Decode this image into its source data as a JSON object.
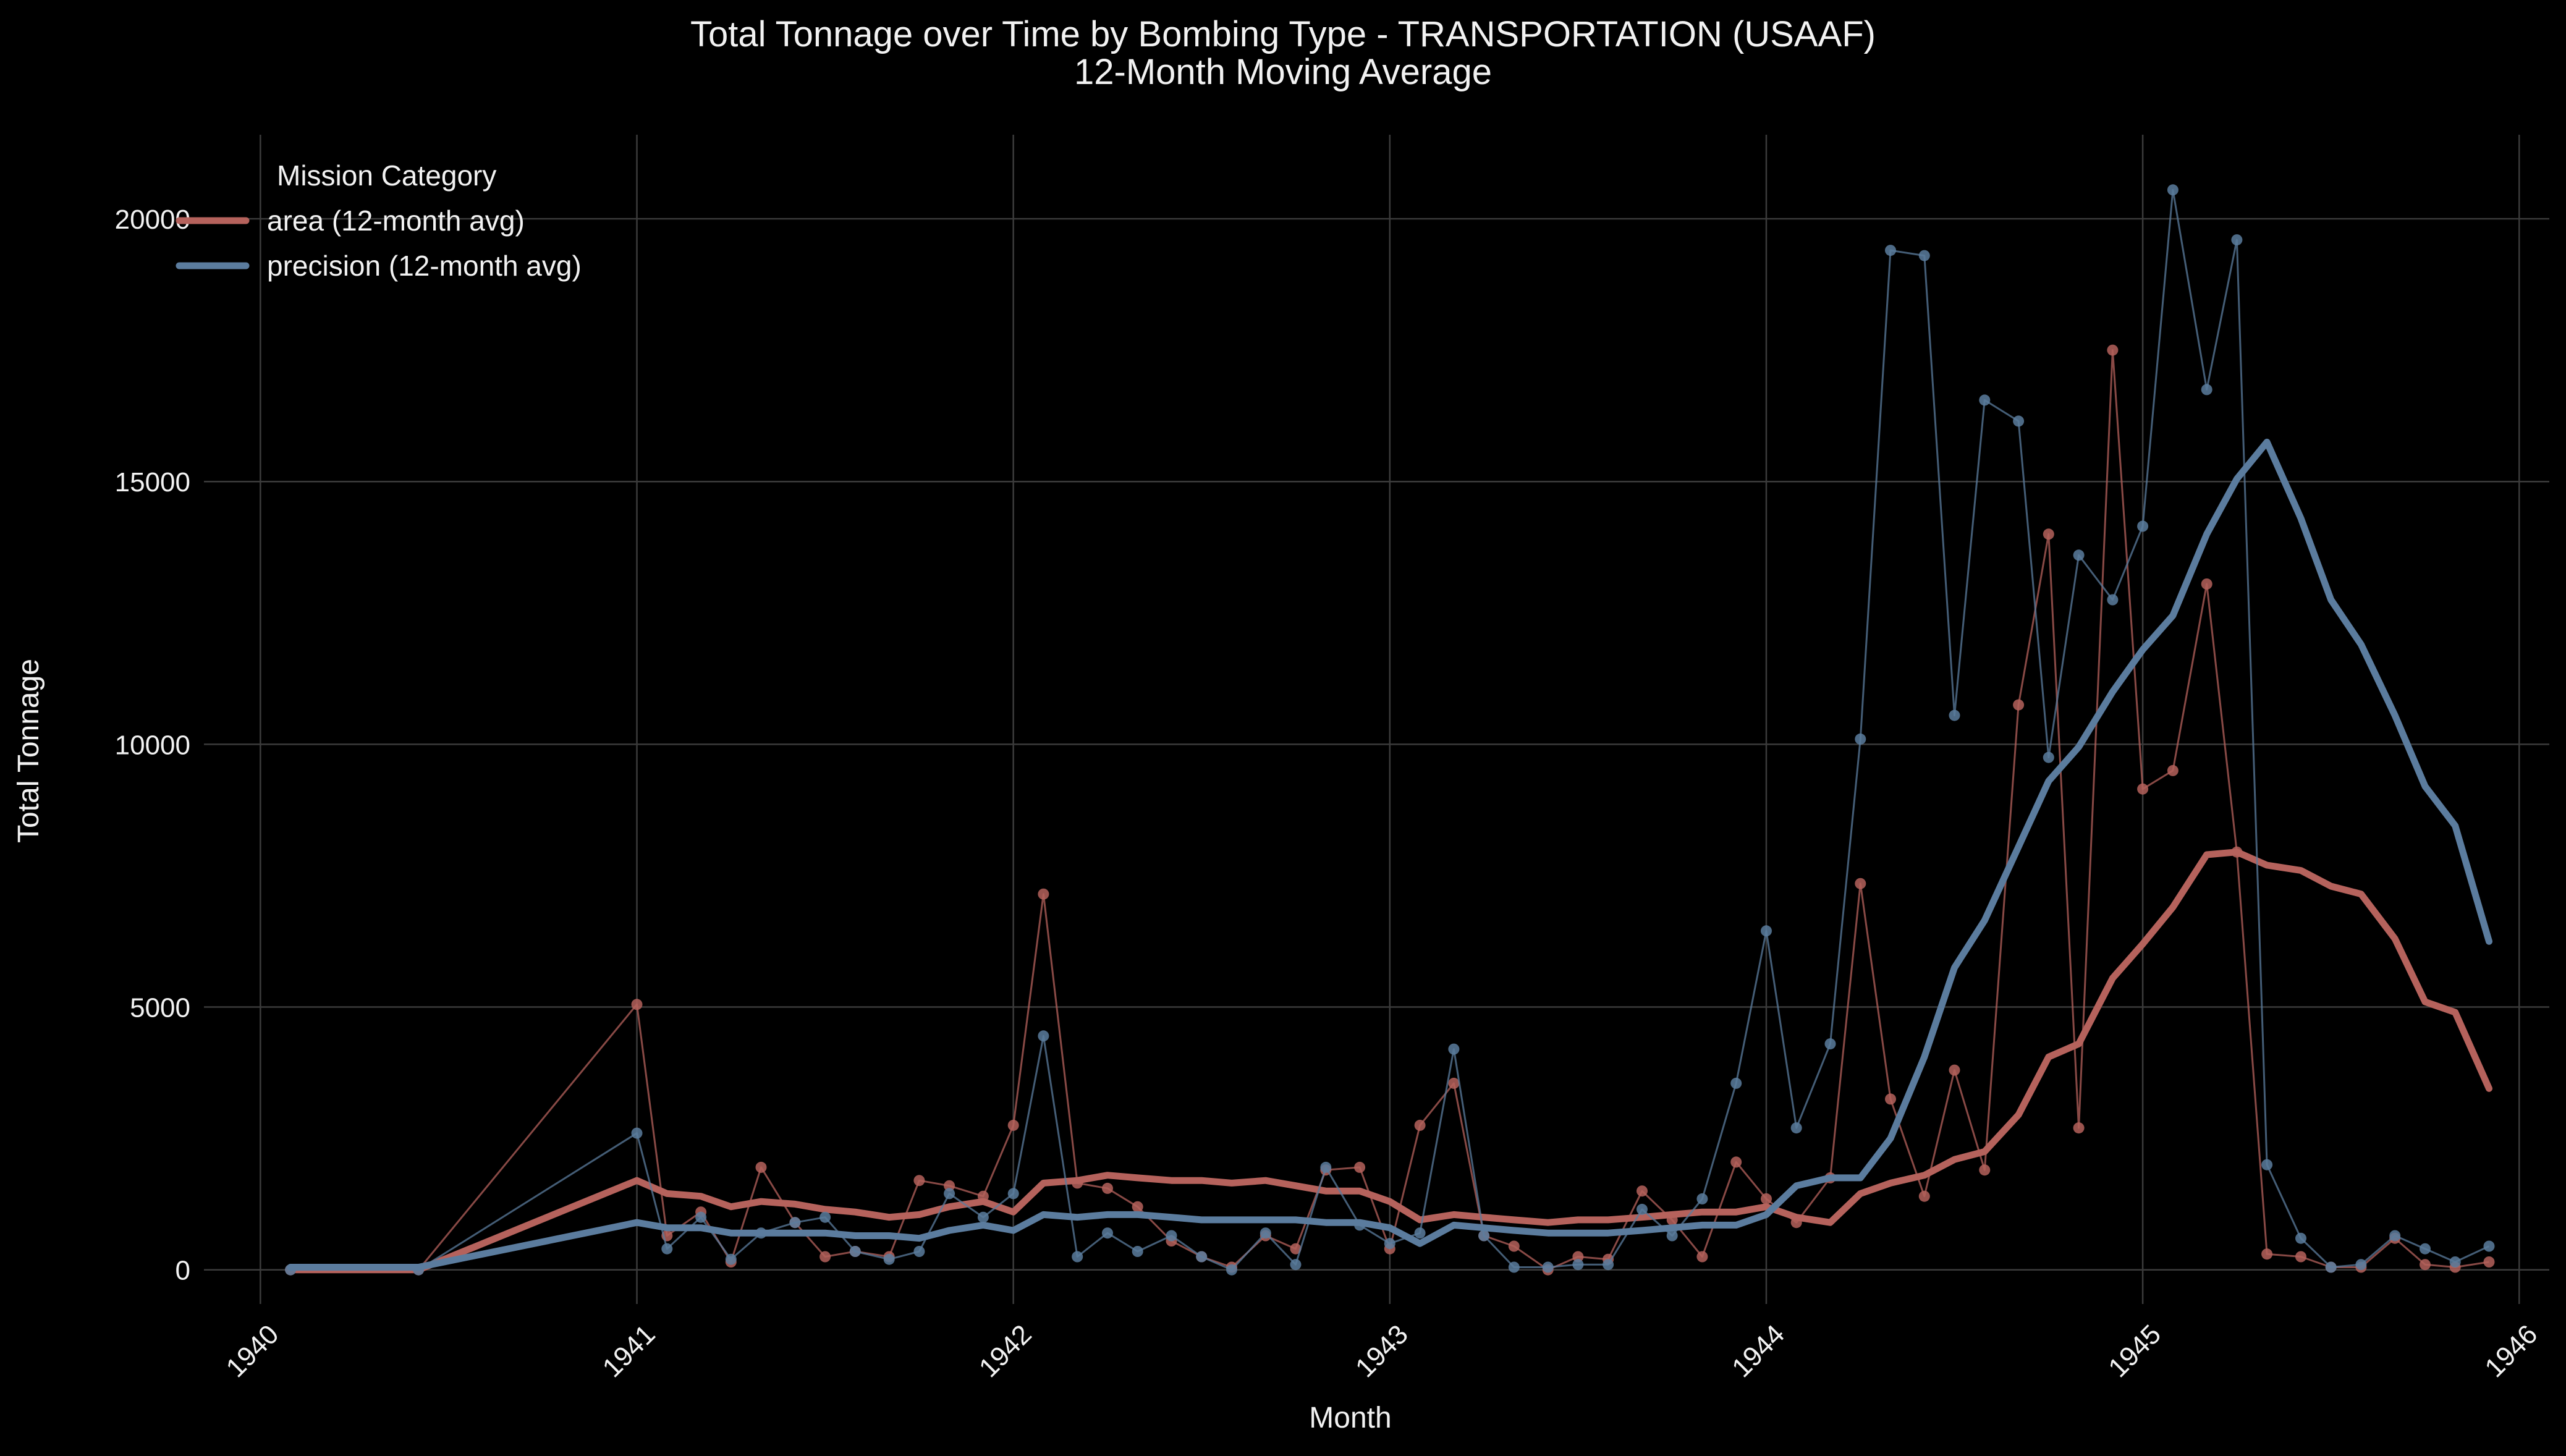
{
  "chart_data": {
    "type": "line",
    "title": "Total Tonnage over Time by Bombing Type - TRANSPORTATION  (USAAF)",
    "subtitle": "12-Month Moving Average",
    "xlabel": "Month",
    "ylabel": "Total Tonnage",
    "xlim": [
      1939.85,
      1946.08
    ],
    "ylim": [
      -650,
      21600
    ],
    "x_ticks": [
      "1940",
      "1941",
      "1942",
      "1943",
      "1944",
      "1945",
      "1946"
    ],
    "x_tick_values": [
      1940,
      1941,
      1942,
      1943,
      1944,
      1945,
      1946
    ],
    "y_ticks": [
      "0",
      "5000",
      "10000",
      "15000",
      "20000"
    ],
    "y_tick_values": [
      0,
      5000,
      10000,
      15000,
      20000
    ],
    "grid": true,
    "legend": {
      "title": "Mission Category",
      "placement": "top-left"
    },
    "series": [
      {
        "name": "area (12-month avg)",
        "color": "#b5625c",
        "raw_x": [
          1940.08,
          1940.42,
          1941.0,
          1941.08,
          1941.17,
          1941.25,
          1941.33,
          1941.42,
          1941.5,
          1941.58,
          1941.67,
          1941.75,
          1941.83,
          1941.92,
          1942.0,
          1942.08,
          1942.17,
          1942.25,
          1942.33,
          1942.42,
          1942.5,
          1942.58,
          1942.67,
          1942.75,
          1942.83,
          1942.92,
          1943.0,
          1943.08,
          1943.17,
          1943.25,
          1943.33,
          1943.42,
          1943.5,
          1943.58,
          1943.67,
          1943.75,
          1943.83,
          1943.92,
          1944.0,
          1944.08,
          1944.17,
          1944.25,
          1944.33,
          1944.42,
          1944.5,
          1944.58,
          1944.67,
          1944.75,
          1944.83,
          1944.92,
          1945.0,
          1945.08,
          1945.17,
          1945.25,
          1945.33,
          1945.42,
          1945.5,
          1945.58,
          1945.67,
          1945.75,
          1945.83,
          1945.92
        ],
        "raw_y": [
          0,
          0,
          5050,
          650,
          1100,
          150,
          1950,
          900,
          250,
          350,
          250,
          1700,
          1600,
          1400,
          2750,
          7150,
          1650,
          1550,
          1200,
          550,
          250,
          50,
          650,
          400,
          1900,
          1950,
          400,
          2750,
          3550,
          650,
          450,
          0,
          250,
          200,
          1500,
          950,
          250,
          2050,
          1350,
          900,
          1750,
          7350,
          3250,
          1400,
          3800,
          1900,
          10750,
          14000,
          2700,
          17500,
          9150,
          9500,
          13050,
          7950,
          300,
          250,
          50,
          50,
          600,
          100,
          50,
          150
        ],
        "x": [
          1940.08,
          1940.42,
          1941.0,
          1941.08,
          1941.17,
          1941.25,
          1941.33,
          1941.42,
          1941.5,
          1941.58,
          1941.67,
          1941.75,
          1941.83,
          1941.92,
          1942.0,
          1942.08,
          1942.17,
          1942.25,
          1942.33,
          1942.42,
          1942.5,
          1942.58,
          1942.67,
          1942.75,
          1942.83,
          1942.92,
          1943.0,
          1943.08,
          1943.17,
          1943.25,
          1943.33,
          1943.42,
          1943.5,
          1943.58,
          1943.67,
          1943.75,
          1943.83,
          1943.92,
          1944.0,
          1944.08,
          1944.17,
          1944.25,
          1944.33,
          1944.42,
          1944.5,
          1944.58,
          1944.67,
          1944.75,
          1944.83,
          1944.92,
          1945.0,
          1945.08,
          1945.17,
          1945.25,
          1945.33,
          1945.42,
          1945.5,
          1945.58,
          1945.67,
          1945.75,
          1945.83,
          1945.92
        ],
        "values": [
          0,
          0,
          1700,
          1450,
          1400,
          1200,
          1300,
          1250,
          1150,
          1100,
          1000,
          1050,
          1200,
          1300,
          1100,
          1650,
          1700,
          1800,
          1750,
          1700,
          1700,
          1650,
          1700,
          1600,
          1500,
          1500,
          1300,
          950,
          1050,
          1000,
          950,
          900,
          950,
          950,
          1000,
          1050,
          1100,
          1100,
          1200,
          1000,
          900,
          1450,
          1650,
          1800,
          2100,
          2250,
          2950,
          4050,
          4300,
          5550,
          6200,
          6900,
          7900,
          7950,
          7700,
          7600,
          7300,
          7150,
          6300,
          5100,
          4900,
          3450
        ]
      },
      {
        "name": "precision (12-month avg)",
        "color": "#5b7c9e",
        "raw_x": [
          1940.08,
          1940.42,
          1941.0,
          1941.08,
          1941.17,
          1941.25,
          1941.33,
          1941.42,
          1941.5,
          1941.58,
          1941.67,
          1941.75,
          1941.83,
          1941.92,
          1942.0,
          1942.08,
          1942.17,
          1942.25,
          1942.33,
          1942.42,
          1942.5,
          1942.58,
          1942.67,
          1942.75,
          1942.83,
          1942.92,
          1943.0,
          1943.08,
          1943.17,
          1943.25,
          1943.33,
          1943.42,
          1943.5,
          1943.58,
          1943.67,
          1943.75,
          1943.83,
          1943.92,
          1944.0,
          1944.08,
          1944.17,
          1944.25,
          1944.33,
          1944.42,
          1944.5,
          1944.58,
          1944.67,
          1944.75,
          1944.83,
          1944.92,
          1945.0,
          1945.08,
          1945.17,
          1945.25,
          1945.33,
          1945.42,
          1945.5,
          1945.58,
          1945.67,
          1945.75,
          1945.83,
          1945.92
        ],
        "raw_y": [
          0,
          0,
          2600,
          400,
          1000,
          200,
          700,
          900,
          1000,
          350,
          200,
          350,
          1450,
          1000,
          1450,
          4450,
          250,
          700,
          350,
          650,
          250,
          0,
          700,
          100,
          1950,
          850,
          500,
          700,
          4200,
          650,
          50,
          50,
          100,
          100,
          1150,
          650,
          1350,
          3550,
          6450,
          2700,
          4300,
          10100,
          19400,
          19300,
          10550,
          16550,
          16150,
          9750,
          13600,
          12750,
          14150,
          20550,
          16750,
          19600,
          2000,
          600,
          50,
          100,
          650,
          400,
          150,
          450
        ],
        "x": [
          1940.08,
          1940.42,
          1941.0,
          1941.08,
          1941.17,
          1941.25,
          1941.33,
          1941.42,
          1941.5,
          1941.58,
          1941.67,
          1941.75,
          1941.83,
          1941.92,
          1942.0,
          1942.08,
          1942.17,
          1942.25,
          1942.33,
          1942.42,
          1942.5,
          1942.58,
          1942.67,
          1942.75,
          1942.83,
          1942.92,
          1943.0,
          1943.08,
          1943.17,
          1943.25,
          1943.33,
          1943.42,
          1943.5,
          1943.58,
          1943.67,
          1943.75,
          1943.83,
          1943.92,
          1944.0,
          1944.08,
          1944.17,
          1944.25,
          1944.33,
          1944.42,
          1944.5,
          1944.58,
          1944.67,
          1944.75,
          1944.83,
          1944.92,
          1945.0,
          1945.08,
          1945.17,
          1945.25,
          1945.33,
          1945.42,
          1945.5,
          1945.58,
          1945.67,
          1945.75,
          1945.83,
          1945.92
        ],
        "values": [
          50,
          50,
          900,
          800,
          800,
          700,
          700,
          700,
          700,
          650,
          650,
          600,
          750,
          850,
          750,
          1050,
          1000,
          1050,
          1050,
          1000,
          950,
          950,
          950,
          950,
          900,
          900,
          800,
          500,
          850,
          800,
          750,
          700,
          700,
          700,
          750,
          800,
          850,
          850,
          1050,
          1600,
          1750,
          1750,
          2500,
          4050,
          5750,
          6650,
          8050,
          9300,
          9950,
          11000,
          11800,
          12450,
          14000,
          15050,
          15750,
          14300,
          12750,
          11900,
          10550,
          9200,
          8450,
          6250
        ]
      }
    ]
  }
}
